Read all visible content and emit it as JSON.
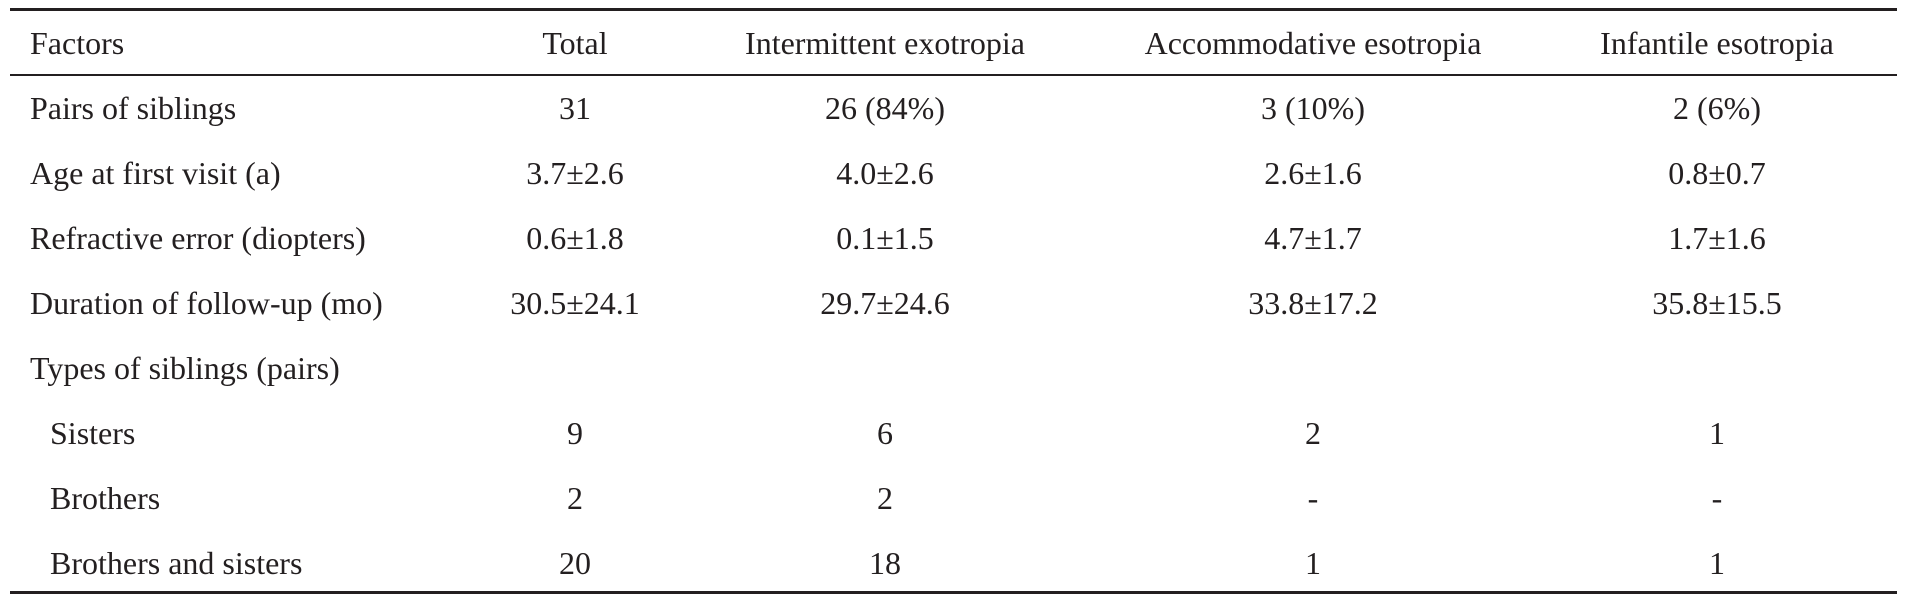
{
  "table": {
    "header": [
      "Factors",
      "Total",
      "Intermittent exotropia",
      "Accommodative esotropia",
      "Infantile esotropia"
    ],
    "rows": [
      [
        "Pairs of siblings",
        "31",
        "26 (84%)",
        "3 (10%)",
        "2 (6%)"
      ],
      [
        "Age at first visit (a)",
        "3.7±2.6",
        "4.0±2.6",
        "2.6±1.6",
        "0.8±0.7"
      ],
      [
        "Refractive error (diopters)",
        "0.6±1.8",
        "0.1±1.5",
        "4.7±1.7",
        "1.7±1.6"
      ],
      [
        "Duration of follow-up (mo)",
        "30.5±24.1",
        "29.7±24.6",
        "33.8±17.2",
        "35.8±15.5"
      ],
      [
        "Types of siblings (pairs)"
      ],
      [
        "Sisters",
        "9",
        "6",
        "2",
        "1"
      ],
      [
        "Brothers",
        "2",
        "2",
        "-",
        "-"
      ],
      [
        "Brothers and sisters",
        "20",
        "18",
        "1",
        "1"
      ]
    ]
  }
}
